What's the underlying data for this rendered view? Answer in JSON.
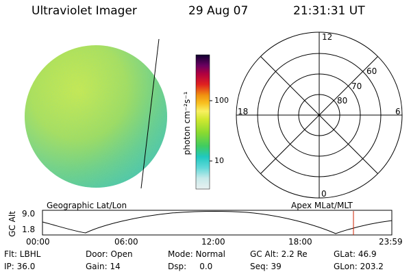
{
  "header": {
    "title": "Ultraviolet Imager",
    "date": "29 Aug 07",
    "time": "21:31:31 UT"
  },
  "colorbar": {
    "unit_label": "photon cm⁻²s⁻¹",
    "tick_labels": [
      "100",
      "10"
    ]
  },
  "polar_plot": {
    "clock_labels": [
      "12",
      "18",
      "6",
      "0"
    ],
    "latitude_labels": [
      "60",
      "70",
      "80"
    ]
  },
  "orbit_panel": {
    "left_label": "Geographic Lat/Lon",
    "right_label": "Apex MLat/MLT",
    "y_axis_label": "GC Alt",
    "y_ticks": [
      "9.0",
      "1.8"
    ],
    "x_ticks": [
      "00:00",
      "06:00",
      "12:00",
      "18:00",
      "23:59"
    ],
    "marker_color": "#cc2200"
  },
  "status": {
    "flt": "Flt: LBHL",
    "door": "Door: Open",
    "mode": "Mode: Normal",
    "gc_alt": "GC Alt: 2.2 Re",
    "glat": "GLat:  46.9",
    "ip": "IP: 36.0",
    "gain": "Gain: 14",
    "dsp": "Dsp:     0.0",
    "seq": "Seq: 39",
    "glon": "GLon: 203.2"
  }
}
